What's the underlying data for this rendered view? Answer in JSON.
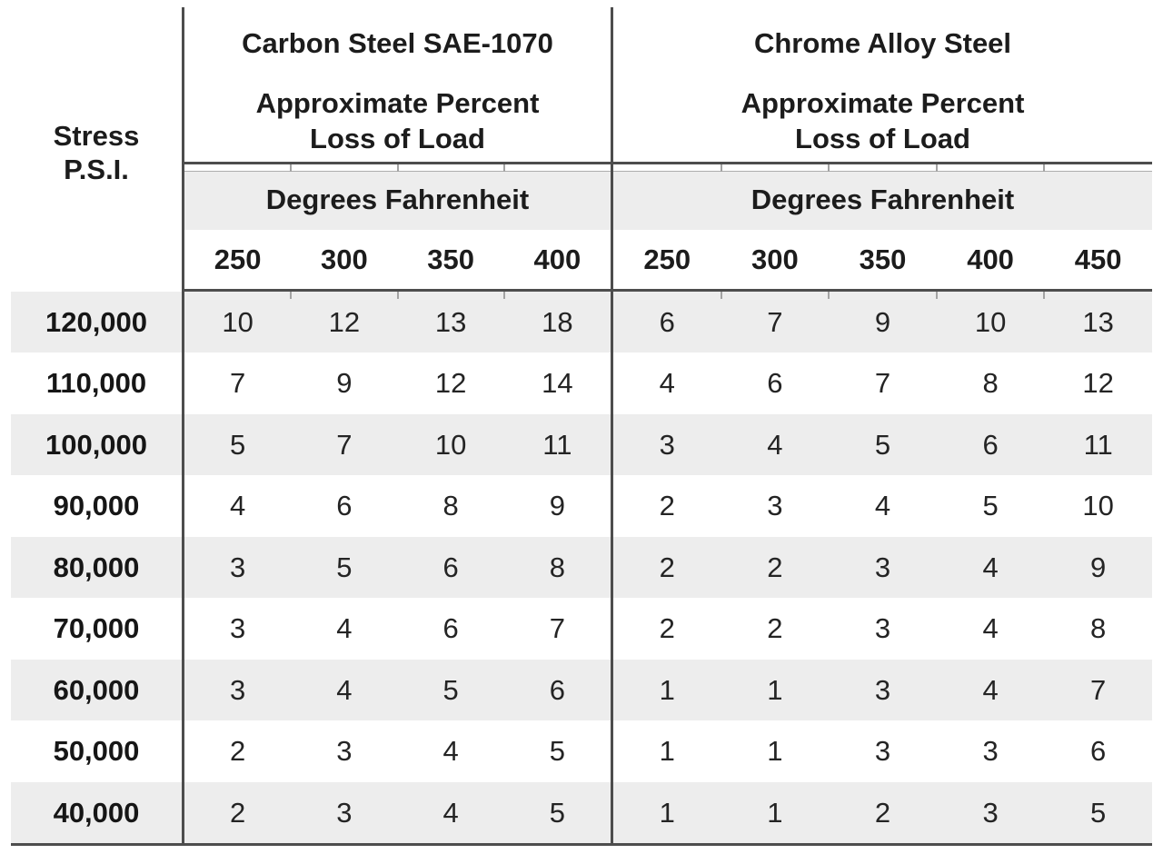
{
  "table": {
    "stress_header": {
      "line1": "Stress",
      "line2": "P.S.I."
    },
    "sections": [
      {
        "title": "Carbon Steel SAE-1070",
        "subtitle_line1": "Approximate Percent",
        "subtitle_line2": "Loss of Load",
        "degrees_label": "Degrees Fahrenheit",
        "temperatures": [
          "250",
          "300",
          "350",
          "400"
        ]
      },
      {
        "title": "Chrome Alloy Steel",
        "subtitle_line1": "Approximate Percent",
        "subtitle_line2": "Loss of Load",
        "degrees_label": "Degrees Fahrenheit",
        "temperatures": [
          "250",
          "300",
          "350",
          "400",
          "450"
        ]
      }
    ],
    "rows": [
      {
        "stress": "120,000",
        "carbon": [
          "10",
          "12",
          "13",
          "18"
        ],
        "chrome": [
          "6",
          "7",
          "9",
          "10",
          "13"
        ]
      },
      {
        "stress": "110,000",
        "carbon": [
          "7",
          "9",
          "12",
          "14"
        ],
        "chrome": [
          "4",
          "6",
          "7",
          "8",
          "12"
        ]
      },
      {
        "stress": "100,000",
        "carbon": [
          "5",
          "7",
          "10",
          "11"
        ],
        "chrome": [
          "3",
          "4",
          "5",
          "6",
          "11"
        ]
      },
      {
        "stress": "90,000",
        "carbon": [
          "4",
          "6",
          "8",
          "9"
        ],
        "chrome": [
          "2",
          "3",
          "4",
          "5",
          "10"
        ]
      },
      {
        "stress": "80,000",
        "carbon": [
          "3",
          "5",
          "6",
          "8"
        ],
        "chrome": [
          "2",
          "2",
          "3",
          "4",
          "9"
        ]
      },
      {
        "stress": "70,000",
        "carbon": [
          "3",
          "4",
          "6",
          "7"
        ],
        "chrome": [
          "2",
          "2",
          "3",
          "4",
          "8"
        ]
      },
      {
        "stress": "60,000",
        "carbon": [
          "3",
          "4",
          "5",
          "6"
        ],
        "chrome": [
          "1",
          "1",
          "3",
          "4",
          "7"
        ]
      },
      {
        "stress": "50,000",
        "carbon": [
          "2",
          "3",
          "4",
          "5"
        ],
        "chrome": [
          "1",
          "1",
          "3",
          "3",
          "6"
        ]
      },
      {
        "stress": "40,000",
        "carbon": [
          "2",
          "3",
          "4",
          "5"
        ],
        "chrome": [
          "1",
          "1",
          "2",
          "3",
          "5"
        ]
      }
    ],
    "colors": {
      "row_band": "#ededed",
      "rule": "#4d4d4d",
      "text": "#1c1c1c"
    }
  }
}
